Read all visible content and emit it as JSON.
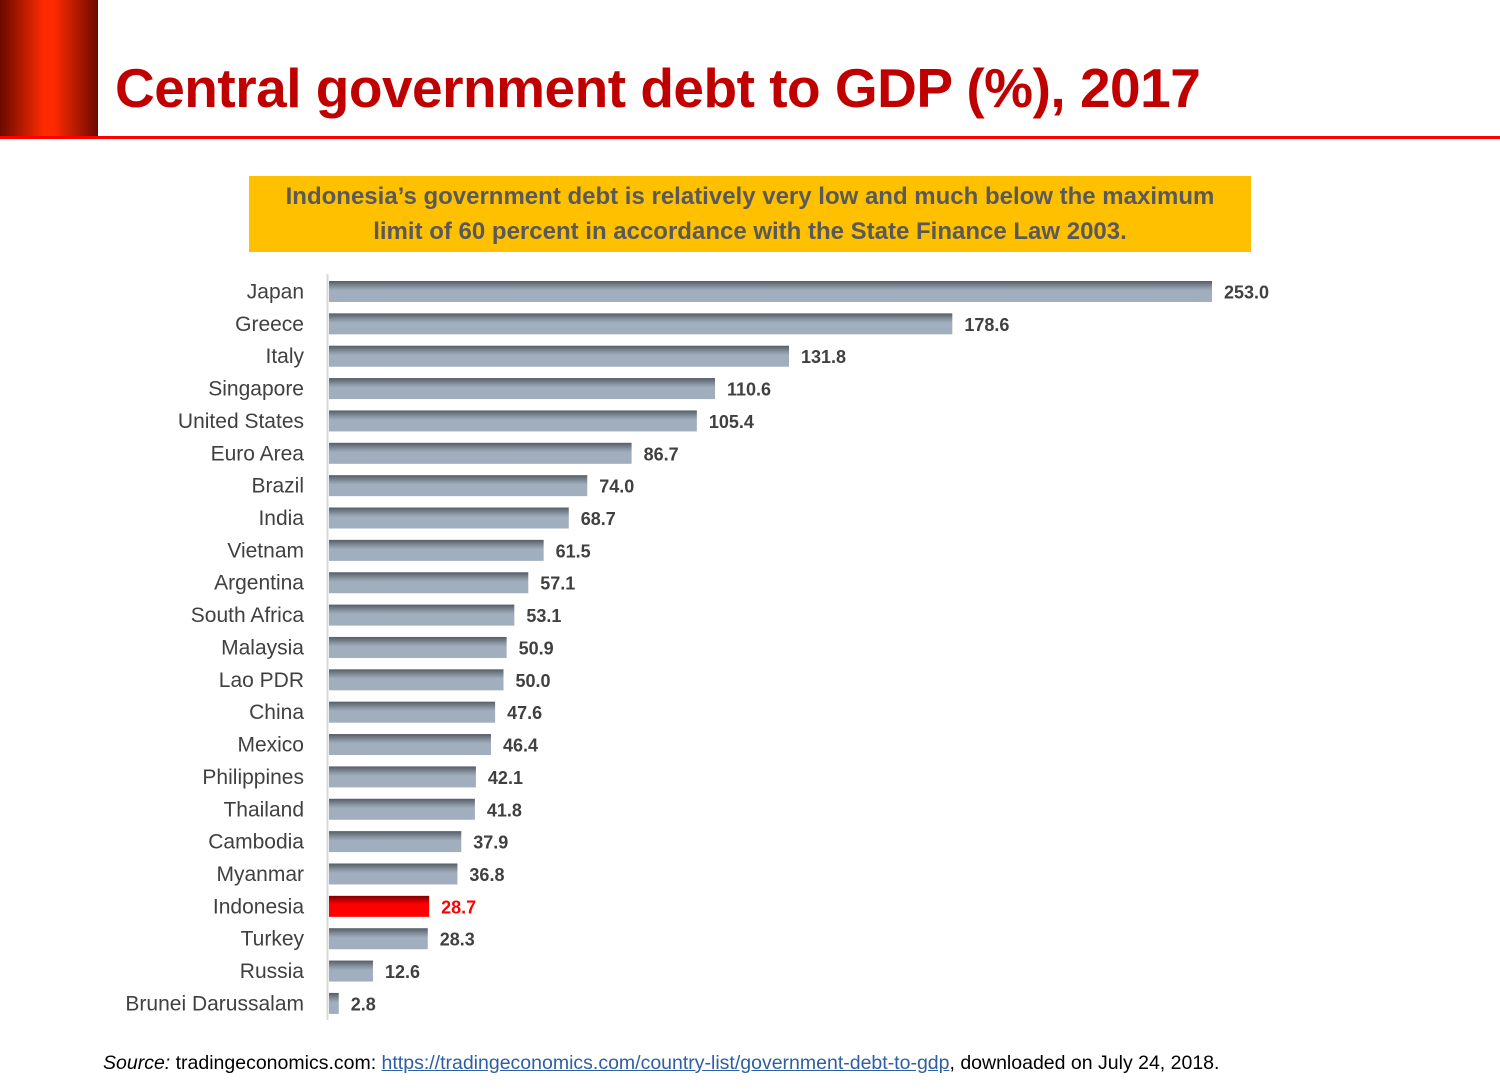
{
  "title": "Central government debt to GDP (%), 2017",
  "callout": {
    "line1": "Indonesia’s government debt is relatively very low and much below the maximum",
    "line2": "limit of 60 percent in accordance with the State Finance Law 2003."
  },
  "source": {
    "label": "Source:",
    "text": " tradingeconomics.com: ",
    "link": "https://tradingeconomics.com/country-list/government-debt-to-gdp",
    "suffix": ", downloaded on July 24, 2018."
  },
  "colors": {
    "bar": "#a0aebd",
    "bar_shadow": "#555d66",
    "highlight": "#ff0000",
    "title": "#c00000",
    "callout_bg": "#ffc000"
  },
  "chart_data": {
    "type": "bar",
    "orientation": "horizontal",
    "title": "Central government debt to GDP (%), 2017",
    "categories": [
      "Japan",
      "Greece",
      "Italy",
      "Singapore",
      "United States",
      "Euro Area",
      "Brazil",
      "India",
      "Vietnam",
      "Argentina",
      "South Africa",
      "Malaysia",
      "Lao PDR",
      "China",
      "Mexico",
      "Philippines",
      "Thailand",
      "Cambodia",
      "Myanmar",
      "Indonesia",
      "Turkey",
      "Russia",
      "Brunei Darussalam"
    ],
    "values": [
      253.0,
      178.6,
      131.8,
      110.6,
      105.4,
      86.7,
      74.0,
      68.7,
      61.5,
      57.1,
      53.1,
      50.9,
      50.0,
      47.6,
      46.4,
      42.1,
      41.8,
      37.9,
      36.8,
      28.7,
      28.3,
      12.6,
      2.8
    ],
    "highlight": "Indonesia",
    "xlim": [
      0,
      253
    ],
    "grid": false,
    "data_labels": true
  }
}
